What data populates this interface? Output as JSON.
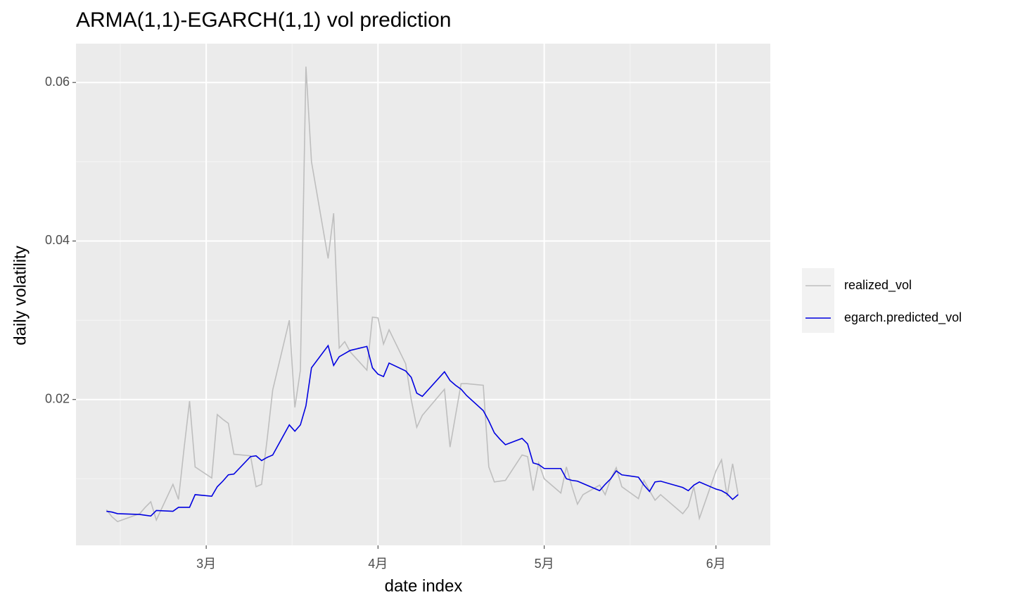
{
  "chart_data": {
    "type": "line",
    "title": "ARMA(1,1)-EGARCH(1,1) vol prediction",
    "x_label": "date index",
    "y_label": "daily volatility",
    "x": [
      43,
      44,
      45,
      49,
      50,
      51,
      52,
      55,
      56,
      57,
      58,
      59,
      62,
      63,
      64,
      65,
      66,
      69,
      70,
      71,
      72,
      73,
      76,
      77,
      78,
      79,
      80,
      83,
      84,
      85,
      86,
      87,
      90,
      91,
      92,
      93,
      94,
      97,
      98,
      99,
      100,
      104,
      105,
      106,
      107,
      108,
      111,
      112,
      113,
      114,
      115,
      118,
      119,
      120,
      121,
      122,
      125,
      126,
      127,
      128,
      129,
      132,
      133,
      134,
      135,
      136,
      139,
      140,
      141,
      142,
      143,
      147,
      148,
      149,
      150,
      153,
      154,
      155,
      156,
      157
    ],
    "series": [
      {
        "name": "realized_vol",
        "color": "#bebebe",
        "values": [
          0.0061,
          0.0052,
          0.0046,
          0.0056,
          0.0064,
          0.0071,
          0.0048,
          0.0093,
          0.0074,
          0.0138,
          0.0198,
          0.0115,
          0.0101,
          0.0181,
          0.0175,
          0.017,
          0.0131,
          0.0129,
          0.009,
          0.0093,
          0.015,
          0.0212,
          0.03,
          0.019,
          0.0237,
          0.062,
          0.05,
          0.0378,
          0.0435,
          0.0265,
          0.0273,
          0.026,
          0.0237,
          0.0304,
          0.0303,
          0.027,
          0.0288,
          0.0245,
          0.02,
          0.0165,
          0.018,
          0.0213,
          0.014,
          0.018,
          0.022,
          0.022,
          0.0218,
          0.0115,
          0.0096,
          0.0097,
          0.0098,
          0.013,
          0.0128,
          0.0085,
          0.012,
          0.01,
          0.0082,
          0.0115,
          0.009,
          0.0068,
          0.008,
          0.0092,
          0.008,
          0.01,
          0.0114,
          0.009,
          0.0075,
          0.0098,
          0.0085,
          0.0073,
          0.008,
          0.0056,
          0.0065,
          0.009,
          0.005,
          0.011,
          0.0124,
          0.0078,
          0.0119,
          0.008
        ]
      },
      {
        "name": "egarch.predicted_vol",
        "color": "#0000e0",
        "values": [
          0.0059,
          0.0058,
          0.0056,
          0.0055,
          0.0054,
          0.0053,
          0.006,
          0.0059,
          0.0064,
          0.0064,
          0.0064,
          0.008,
          0.0078,
          0.009,
          0.0097,
          0.0105,
          0.0106,
          0.0128,
          0.0129,
          0.0123,
          0.0127,
          0.013,
          0.0168,
          0.016,
          0.0168,
          0.0192,
          0.024,
          0.0268,
          0.0243,
          0.0254,
          0.0258,
          0.0262,
          0.0267,
          0.024,
          0.0232,
          0.0229,
          0.0246,
          0.0236,
          0.0228,
          0.0208,
          0.0204,
          0.0235,
          0.0224,
          0.0218,
          0.0213,
          0.0205,
          0.0186,
          0.0173,
          0.0158,
          0.015,
          0.0143,
          0.0151,
          0.0144,
          0.012,
          0.0118,
          0.0113,
          0.0113,
          0.01,
          0.0098,
          0.0097,
          0.0094,
          0.0085,
          0.0093,
          0.01,
          0.011,
          0.0105,
          0.0102,
          0.0092,
          0.0084,
          0.0096,
          0.0097,
          0.0089,
          0.0085,
          0.0092,
          0.0096,
          0.0087,
          0.0085,
          0.0081,
          0.0074,
          0.008
        ]
      }
    ],
    "xlim": [
      37.5,
      162.8
    ],
    "xticks": [
      {
        "value": 61,
        "label": "3月"
      },
      {
        "value": 92,
        "label": "4月"
      },
      {
        "value": 122,
        "label": "5月"
      },
      {
        "value": 153,
        "label": "6月"
      }
    ],
    "ylim": [
      0.0016,
      0.0649
    ],
    "yticks": [
      0.02,
      0.04,
      0.06
    ],
    "grid": true,
    "legend": "right"
  }
}
